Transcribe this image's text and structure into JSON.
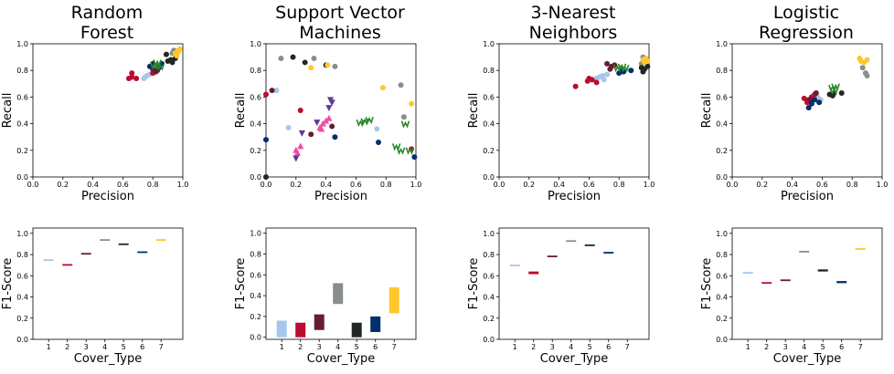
{
  "colors": [
    "#a7c6ed",
    "#ba0c2f",
    "#651d32",
    "#8a8d8f",
    "#212721",
    "#002f6c",
    "#ffc72c"
  ],
  "extra_colors": {
    "pink": "#f04da3",
    "purple": "#5c3d8f",
    "green": "#2a8a2a"
  },
  "chart_data": [
    {
      "type": "scatter",
      "title": "Random\nForest",
      "xlabel": "Precision",
      "ylabel": "Recall",
      "xlim": [
        0,
        1
      ],
      "ylim": [
        0,
        1
      ],
      "ticks": [
        "0.0",
        "0.2",
        "0.4",
        "0.6",
        "0.8",
        "1.0"
      ],
      "series": [
        {
          "color_index": 0,
          "marker": "circle",
          "points": [
            [
              0.74,
              0.74
            ],
            [
              0.76,
              0.76
            ],
            [
              0.78,
              0.77
            ],
            [
              0.8,
              0.79
            ],
            [
              0.75,
              0.75
            ]
          ]
        },
        {
          "color_index": 1,
          "marker": "circle",
          "points": [
            [
              0.64,
              0.74
            ],
            [
              0.66,
              0.75
            ],
            [
              0.69,
              0.74
            ],
            [
              0.66,
              0.78
            ],
            [
              0.8,
              0.78
            ]
          ]
        },
        {
          "color_index": 2,
          "marker": "circle",
          "points": [
            [
              0.8,
              0.81
            ],
            [
              0.82,
              0.79
            ],
            [
              0.84,
              0.82
            ],
            [
              0.83,
              0.8
            ]
          ]
        },
        {
          "color_index": 3,
          "marker": "circle",
          "points": [
            [
              0.93,
              0.93
            ],
            [
              0.95,
              0.94
            ],
            [
              0.94,
              0.95
            ]
          ]
        },
        {
          "color_index": 4,
          "marker": "circle",
          "points": [
            [
              0.9,
              0.87
            ],
            [
              0.92,
              0.88
            ],
            [
              0.95,
              0.89
            ],
            [
              0.89,
              0.92
            ],
            [
              0.93,
              0.86
            ]
          ]
        },
        {
          "color_index": 5,
          "marker": "circle",
          "points": [
            [
              0.78,
              0.83
            ],
            [
              0.8,
              0.85
            ],
            [
              0.83,
              0.84
            ],
            [
              0.86,
              0.85
            ],
            [
              0.84,
              0.82
            ]
          ]
        },
        {
          "color_index": 6,
          "marker": "circle",
          "points": [
            [
              0.95,
              0.93
            ],
            [
              0.97,
              0.95
            ],
            [
              0.96,
              0.91
            ],
            [
              0.98,
              0.96
            ],
            [
              0.97,
              0.94
            ]
          ]
        },
        {
          "color_hex": "#2a8a2a",
          "marker": "w",
          "points": [
            [
              0.81,
              0.84
            ],
            [
              0.83,
              0.86
            ],
            [
              0.85,
              0.83
            ]
          ]
        }
      ]
    },
    {
      "type": "scatter",
      "title": "Support Vector\nMachines",
      "xlabel": "Precision",
      "ylabel": "Recall",
      "xlim": [
        0,
        1
      ],
      "ylim": [
        0,
        1
      ],
      "ticks": [
        "0.0",
        "0.2",
        "0.4",
        "0.6",
        "0.8",
        "1.0"
      ],
      "series": [
        {
          "color_index": 0,
          "marker": "circle",
          "points": [
            [
              0.07,
              0.65
            ],
            [
              0.15,
              0.37
            ],
            [
              0.74,
              0.36
            ]
          ]
        },
        {
          "color_index": 1,
          "marker": "circle",
          "points": [
            [
              0.0,
              0.62
            ],
            [
              0.23,
              0.5
            ],
            [
              0.97,
              0.21
            ]
          ]
        },
        {
          "color_index": 2,
          "marker": "circle",
          "points": [
            [
              0.04,
              0.65
            ],
            [
              0.44,
              0.38
            ],
            [
              0.3,
              0.32
            ]
          ]
        },
        {
          "color_index": 3,
          "marker": "circle",
          "points": [
            [
              0.1,
              0.89
            ],
            [
              0.32,
              0.89
            ],
            [
              0.46,
              0.83
            ],
            [
              0.9,
              0.69
            ],
            [
              0.92,
              0.45
            ]
          ]
        },
        {
          "color_index": 4,
          "marker": "circle",
          "points": [
            [
              0.18,
              0.9
            ],
            [
              0.26,
              0.86
            ],
            [
              0.4,
              0.84
            ],
            [
              0.0,
              0.0
            ]
          ]
        },
        {
          "color_index": 5,
          "marker": "circle",
          "points": [
            [
              0.0,
              0.28
            ],
            [
              0.46,
              0.3
            ],
            [
              0.75,
              0.26
            ],
            [
              0.99,
              0.15
            ]
          ]
        },
        {
          "color_index": 6,
          "marker": "circle",
          "points": [
            [
              0.3,
              0.82
            ],
            [
              0.41,
              0.84
            ],
            [
              0.78,
              0.67
            ],
            [
              0.97,
              0.55
            ]
          ]
        },
        {
          "color_hex": "#f04da3",
          "marker": "triangle-up",
          "points": [
            [
              0.2,
              0.2
            ],
            [
              0.23,
              0.23
            ],
            [
              0.21,
              0.18
            ],
            [
              0.36,
              0.37
            ],
            [
              0.38,
              0.4
            ],
            [
              0.4,
              0.42
            ],
            [
              0.42,
              0.44
            ],
            [
              0.37,
              0.36
            ]
          ]
        },
        {
          "color_hex": "#5c3d8f",
          "marker": "triangle-down",
          "points": [
            [
              0.2,
              0.14
            ],
            [
              0.24,
              0.33
            ],
            [
              0.34,
              0.41
            ],
            [
              0.42,
              0.52
            ],
            [
              0.44,
              0.56
            ],
            [
              0.43,
              0.58
            ]
          ]
        },
        {
          "color_hex": "#2a8a2a",
          "marker": "w",
          "points": [
            [
              0.63,
              0.41
            ],
            [
              0.66,
              0.42
            ],
            [
              0.69,
              0.43
            ],
            [
              0.87,
              0.23
            ],
            [
              0.9,
              0.2
            ],
            [
              0.93,
              0.4
            ],
            [
              0.96,
              0.2
            ]
          ]
        }
      ]
    },
    {
      "type": "scatter",
      "title": "3-Nearest\nNeighbors",
      "xlabel": "Precision",
      "ylabel": "Recall",
      "xlim": [
        0,
        1
      ],
      "ylim": [
        0,
        1
      ],
      "ticks": [
        "0.0",
        "0.2",
        "0.4",
        "0.6",
        "0.8",
        "1.0"
      ],
      "series": [
        {
          "color_index": 0,
          "marker": "circle",
          "points": [
            [
              0.65,
              0.74
            ],
            [
              0.67,
              0.75
            ],
            [
              0.69,
              0.76
            ],
            [
              0.7,
              0.73
            ],
            [
              0.72,
              0.77
            ]
          ]
        },
        {
          "color_index": 1,
          "marker": "circle",
          "points": [
            [
              0.51,
              0.68
            ],
            [
              0.59,
              0.72
            ],
            [
              0.62,
              0.73
            ],
            [
              0.65,
              0.71
            ],
            [
              0.6,
              0.74
            ]
          ]
        },
        {
          "color_index": 2,
          "marker": "circle",
          "points": [
            [
              0.72,
              0.85
            ],
            [
              0.75,
              0.83
            ],
            [
              0.77,
              0.84
            ],
            [
              0.74,
              0.81
            ]
          ]
        },
        {
          "color_index": 3,
          "marker": "circle",
          "points": [
            [
              0.96,
              0.9
            ],
            [
              0.97,
              0.86
            ],
            [
              0.95,
              0.85
            ]
          ]
        },
        {
          "color_index": 4,
          "marker": "circle",
          "points": [
            [
              0.95,
              0.82
            ],
            [
              0.97,
              0.81
            ],
            [
              0.99,
              0.83
            ],
            [
              0.96,
              0.79
            ]
          ]
        },
        {
          "color_index": 5,
          "marker": "circle",
          "points": [
            [
              0.8,
              0.78
            ],
            [
              0.82,
              0.81
            ],
            [
              0.88,
              0.8
            ],
            [
              0.83,
              0.79
            ]
          ]
        },
        {
          "color_index": 6,
          "marker": "circle",
          "points": [
            [
              0.96,
              0.88
            ],
            [
              0.98,
              0.89
            ],
            [
              0.99,
              0.87
            ],
            [
              0.97,
              0.86
            ]
          ]
        },
        {
          "color_hex": "#2a8a2a",
          "marker": "w",
          "points": [
            [
              0.79,
              0.82
            ],
            [
              0.82,
              0.83
            ],
            [
              0.84,
              0.82
            ]
          ]
        }
      ]
    },
    {
      "type": "scatter",
      "title": "Logistic\nRegression",
      "xlabel": "Precision",
      "ylabel": "Recall",
      "xlim": [
        0,
        1
      ],
      "ylim": [
        0,
        1
      ],
      "ticks": [
        "0.0",
        "0.2",
        "0.4",
        "0.6",
        "0.8",
        "1.0"
      ],
      "series": [
        {
          "color_index": 0,
          "marker": "circle",
          "points": [
            [
              0.55,
              0.59
            ],
            [
              0.57,
              0.6
            ],
            [
              0.59,
              0.58
            ]
          ]
        },
        {
          "color_index": 1,
          "marker": "circle",
          "points": [
            [
              0.48,
              0.59
            ],
            [
              0.5,
              0.56
            ],
            [
              0.53,
              0.6
            ],
            [
              0.51,
              0.58
            ],
            [
              0.55,
              0.62
            ]
          ]
        },
        {
          "color_index": 2,
          "marker": "circle",
          "points": [
            [
              0.52,
              0.58
            ],
            [
              0.53,
              0.57
            ],
            [
              0.56,
              0.63
            ]
          ]
        },
        {
          "color_index": 3,
          "marker": "circle",
          "points": [
            [
              0.87,
              0.82
            ],
            [
              0.89,
              0.78
            ],
            [
              0.9,
              0.76
            ]
          ]
        },
        {
          "color_index": 4,
          "marker": "circle",
          "points": [
            [
              0.65,
              0.62
            ],
            [
              0.68,
              0.63
            ],
            [
              0.73,
              0.63
            ],
            [
              0.67,
              0.61
            ]
          ]
        },
        {
          "color_index": 5,
          "marker": "circle",
          "points": [
            [
              0.51,
              0.52
            ],
            [
              0.53,
              0.55
            ],
            [
              0.58,
              0.56
            ],
            [
              0.55,
              0.58
            ]
          ]
        },
        {
          "color_index": 6,
          "marker": "circle",
          "points": [
            [
              0.85,
              0.89
            ],
            [
              0.86,
              0.87
            ],
            [
              0.88,
              0.86
            ],
            [
              0.9,
              0.88
            ]
          ]
        },
        {
          "color_hex": "#2a8a2a",
          "marker": "w",
          "points": [
            [
              0.67,
              0.67
            ],
            [
              0.69,
              0.68
            ],
            [
              0.68,
              0.65
            ]
          ]
        }
      ]
    },
    {
      "type": "bar",
      "ylabel": "F1-Score",
      "xlabel": "Cover_Type",
      "categories": [
        "1",
        "2",
        "3",
        "4",
        "5",
        "6",
        "7"
      ],
      "yticks": [
        "0.0",
        "0.2",
        "0.4",
        "0.6",
        "0.8",
        "1.0"
      ],
      "ylim": [
        0,
        1.05
      ],
      "ranges": [
        [
          0.745,
          0.755
        ],
        [
          0.695,
          0.71
        ],
        [
          0.805,
          0.815
        ],
        [
          0.935,
          0.945
        ],
        [
          0.895,
          0.905
        ],
        [
          0.815,
          0.83
        ],
        [
          0.935,
          0.945
        ]
      ]
    },
    {
      "type": "bar",
      "ylabel": "F1-Score",
      "xlabel": "Cover_Type",
      "categories": [
        "1",
        "2",
        "3",
        "4",
        "5",
        "6",
        "7"
      ],
      "yticks": [
        "0.0",
        "0.2",
        "0.4",
        "0.6",
        "0.8",
        "1.0"
      ],
      "ylim": [
        -0.02,
        1.05
      ],
      "ranges": [
        [
          0.0,
          0.16
        ],
        [
          0.0,
          0.14
        ],
        [
          0.07,
          0.22
        ],
        [
          0.32,
          0.52
        ],
        [
          0.0,
          0.14
        ],
        [
          0.05,
          0.2
        ],
        [
          0.23,
          0.48
        ]
      ]
    },
    {
      "type": "bar",
      "ylabel": "F1-Score",
      "xlabel": "Cover_Type",
      "categories": [
        "1",
        "2",
        "3",
        "4",
        "5",
        "6",
        "7"
      ],
      "yticks": [
        "0.0",
        "0.2",
        "0.4",
        "0.6",
        "0.8",
        "1.0"
      ],
      "ylim": [
        0,
        1.05
      ],
      "ranges": [
        [
          0.695,
          0.705
        ],
        [
          0.615,
          0.64
        ],
        [
          0.78,
          0.79
        ],
        [
          0.925,
          0.935
        ],
        [
          0.885,
          0.895
        ],
        [
          0.81,
          0.825
        ],
        [
          null,
          null
        ]
      ]
    },
    {
      "type": "bar",
      "ylabel": "F1-Score",
      "xlabel": "Cover_Type",
      "categories": [
        "1",
        "2",
        "3",
        "4",
        "5",
        "6",
        "7"
      ],
      "yticks": [
        "0.0",
        "0.2",
        "0.4",
        "0.6",
        "0.8",
        "1.0"
      ],
      "ylim": [
        0,
        1.05
      ],
      "ranges": [
        [
          0.625,
          0.635
        ],
        [
          0.53,
          0.54
        ],
        [
          0.55,
          0.565
        ],
        [
          0.825,
          0.835
        ],
        [
          0.64,
          0.66
        ],
        [
          0.53,
          0.55
        ],
        [
          0.845,
          0.86
        ]
      ]
    }
  ]
}
